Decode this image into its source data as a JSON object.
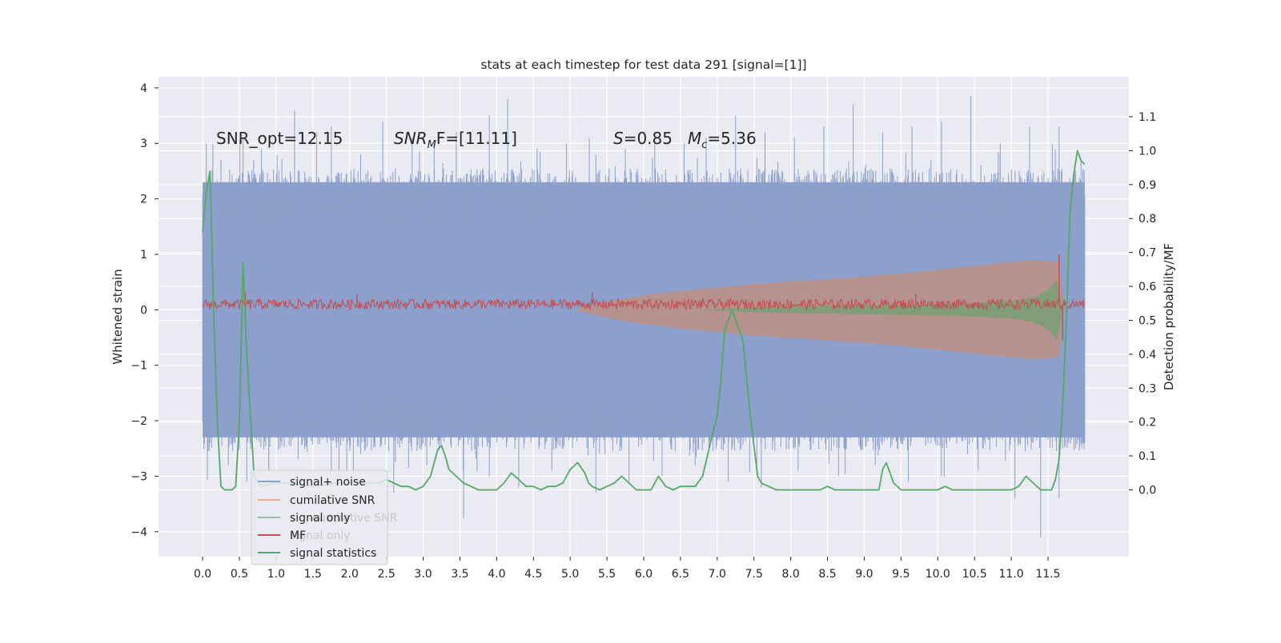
{
  "chart_data": {
    "type": "line",
    "title": "stats at each timestep for test data 291 [signal=[1]]",
    "xlabel": "",
    "ylabel": "Whitened strain",
    "y2label": "Detection probability/MF",
    "xlim": [
      -0.6,
      12.6
    ],
    "ylim": [
      -4.45,
      4.2
    ],
    "y2lim": [
      -0.197,
      1.218
    ],
    "xticks": [
      0.0,
      0.5,
      1.0,
      1.5,
      2.0,
      2.5,
      3.0,
      3.5,
      4.0,
      4.5,
      5.0,
      5.5,
      6.0,
      6.5,
      7.0,
      7.5,
      8.0,
      8.5,
      9.0,
      9.5,
      10.0,
      10.5,
      11.0,
      11.5
    ],
    "xtick_labels": [
      "0.0",
      "0.5",
      "1.0",
      "1.5",
      "2.0",
      "2.5",
      "3.0",
      "3.5",
      "4.0",
      "4.5",
      "5.0",
      "5.5",
      "6.0",
      "6.5",
      "7.0",
      "7.5",
      "8.0",
      "8.5",
      "9.0",
      "9.5",
      "10.0",
      "10.5",
      "11.0",
      "11.5"
    ],
    "yticks": [
      4,
      3,
      2,
      1,
      0,
      -1,
      -2,
      -3,
      -4
    ],
    "ytick_labels": [
      "4",
      "3",
      "2",
      "1",
      "0",
      "−1",
      "−2",
      "−3",
      "−4"
    ],
    "y2ticks": [
      1.1,
      1.0,
      0.9,
      0.8,
      0.7,
      0.6,
      0.5,
      0.4,
      0.3,
      0.2,
      0.1,
      0.0
    ],
    "y2tick_labels": [
      "1.1",
      "1.0",
      "0.9",
      "0.8",
      "0.7",
      "0.6",
      "0.5",
      "0.4",
      "0.3",
      "0.2",
      "0.1",
      "0.0"
    ],
    "grid": true,
    "legend_position": "lower-left",
    "annotations": {
      "snr_opt": "SNR_opt=12.15",
      "snr_mf_main": "SNR",
      "snr_mf_sub": "M",
      "snr_mf_rest": "F=[11.11]",
      "s_main": "S",
      "s_rest": "=0.85",
      "mc_main": "M",
      "mc_sub": "c",
      "mc_rest": "=5.36"
    },
    "legend": [
      {
        "label": "signal+ noise",
        "color": "#8da0cb"
      },
      {
        "label": "cumilative SNR",
        "color": "#dd8452"
      },
      {
        "label": "signal only",
        "color": "#55a868"
      },
      {
        "label": "MF",
        "color": "#c44e52"
      },
      {
        "label": "signal statistics",
        "color": "#55a868"
      }
    ],
    "legend_ghost": [
      "cumilative SNR",
      "signal only"
    ],
    "series": [
      {
        "name": "signal+ noise",
        "axis": "left",
        "style": "dense-noise",
        "color": "#8da0cb",
        "x_range": [
          0.0,
          12.0
        ],
        "band_lo": -2.3,
        "band_hi": 2.3,
        "peaks_up": [
          [
            0.05,
            3.0
          ],
          [
            0.25,
            2.7
          ],
          [
            0.55,
            3.1
          ],
          [
            0.8,
            2.9
          ],
          [
            1.25,
            3.6
          ],
          [
            1.55,
            3.2
          ],
          [
            1.75,
            3.3
          ],
          [
            2.15,
            2.8
          ],
          [
            2.45,
            3.4
          ],
          [
            2.85,
            3.1
          ],
          [
            3.15,
            3.0
          ],
          [
            3.45,
            3.2
          ],
          [
            3.9,
            3.5
          ],
          [
            4.15,
            3.8
          ],
          [
            4.55,
            2.9
          ],
          [
            4.95,
            3.0
          ],
          [
            5.35,
            2.8
          ],
          [
            5.75,
            2.9
          ],
          [
            6.15,
            3.2
          ],
          [
            6.55,
            3.0
          ],
          [
            6.85,
            3.1
          ],
          [
            7.25,
            3.5
          ],
          [
            7.65,
            3.2
          ],
          [
            8.05,
            3.1
          ],
          [
            8.45,
            3.3
          ],
          [
            8.85,
            3.7
          ],
          [
            9.25,
            3.2
          ],
          [
            9.65,
            3.3
          ],
          [
            10.05,
            3.4
          ],
          [
            10.45,
            3.85
          ],
          [
            10.85,
            3.0
          ],
          [
            11.25,
            3.3
          ],
          [
            11.65,
            3.3
          ],
          [
            11.95,
            2.7
          ]
        ],
        "peaks_down": [
          [
            0.1,
            -2.4
          ],
          [
            0.35,
            -2.8
          ],
          [
            0.6,
            -3.1
          ],
          [
            0.9,
            -2.9
          ],
          [
            1.3,
            -2.7
          ],
          [
            1.75,
            -3.0
          ],
          [
            2.15,
            -2.6
          ],
          [
            2.6,
            -3.3
          ],
          [
            3.05,
            -2.8
          ],
          [
            3.55,
            -3.75
          ],
          [
            3.9,
            -3.0
          ],
          [
            4.3,
            -3.2
          ],
          [
            4.75,
            -2.9
          ],
          [
            5.35,
            -3.3
          ],
          [
            5.8,
            -3.1
          ],
          [
            6.25,
            -3.0
          ],
          [
            6.7,
            -2.8
          ],
          [
            7.15,
            -3.1
          ],
          [
            7.6,
            -3.2
          ],
          [
            8.1,
            -2.9
          ],
          [
            8.65,
            -3.0
          ],
          [
            9.15,
            -2.8
          ],
          [
            9.6,
            -3.1
          ],
          [
            10.05,
            -3.0
          ],
          [
            10.55,
            -2.9
          ],
          [
            11.05,
            -3.4
          ],
          [
            11.4,
            -4.1
          ],
          [
            11.65,
            -3.4
          ],
          [
            11.95,
            -2.4
          ]
        ]
      },
      {
        "name": "cumilative SNR",
        "axis": "left",
        "style": "chirp-envelope",
        "color": "#dd8452",
        "x": [
          5.1,
          5.5,
          6.0,
          6.5,
          7.0,
          7.5,
          8.0,
          8.5,
          9.0,
          9.5,
          10.0,
          10.5,
          11.0,
          11.3,
          11.5,
          11.65,
          11.72
        ],
        "upper": [
          0.02,
          0.14,
          0.26,
          0.34,
          0.4,
          0.46,
          0.51,
          0.55,
          0.6,
          0.65,
          0.72,
          0.79,
          0.86,
          0.89,
          0.88,
          0.85,
          0.0
        ],
        "lower": [
          -0.02,
          -0.14,
          -0.26,
          -0.34,
          -0.4,
          -0.46,
          -0.51,
          -0.55,
          -0.6,
          -0.65,
          -0.72,
          -0.79,
          -0.86,
          -0.89,
          -0.88,
          -0.85,
          0.0
        ]
      },
      {
        "name": "signal only",
        "axis": "left",
        "style": "chirp-inner",
        "color": "#55a868",
        "x": [
          6.8,
          7.5,
          8.0,
          8.5,
          9.0,
          9.5,
          10.0,
          10.5,
          11.0,
          11.3,
          11.5,
          11.62,
          11.7
        ],
        "upper": [
          0.0,
          0.04,
          0.06,
          0.07,
          0.08,
          0.09,
          0.1,
          0.12,
          0.16,
          0.22,
          0.35,
          0.55,
          0.0
        ],
        "lower": [
          0.0,
          -0.04,
          -0.06,
          -0.07,
          -0.08,
          -0.09,
          -0.1,
          -0.12,
          -0.16,
          -0.22,
          -0.35,
          -0.55,
          0.0
        ]
      },
      {
        "name": "MF",
        "axis": "left",
        "style": "jagged-line",
        "color": "#c44e52",
        "x_range": [
          0.0,
          12.0
        ],
        "center": 0.1,
        "amplitude": 0.09,
        "spikes": [
          [
            0.58,
            0.3
          ],
          [
            2.1,
            0.27
          ],
          [
            5.3,
            0.32
          ],
          [
            9.7,
            0.28
          ],
          [
            11.65,
            1.0
          ],
          [
            11.7,
            -0.55
          ]
        ]
      },
      {
        "name": "signal statistics",
        "axis": "right",
        "style": "line",
        "color": "#55a868",
        "x": [
          0.0,
          0.05,
          0.1,
          0.15,
          0.2,
          0.25,
          0.3,
          0.35,
          0.4,
          0.45,
          0.5,
          0.55,
          0.6,
          0.7,
          0.8,
          1.0,
          1.2,
          1.5,
          1.8,
          2.0,
          2.2,
          2.4,
          2.5,
          2.6,
          2.7,
          2.8,
          2.9,
          3.0,
          3.1,
          3.2,
          3.25,
          3.3,
          3.35,
          3.45,
          3.55,
          3.65,
          3.75,
          3.85,
          4.0,
          4.1,
          4.2,
          4.3,
          4.4,
          4.5,
          4.6,
          4.7,
          4.8,
          4.9,
          5.0,
          5.1,
          5.2,
          5.25,
          5.3,
          5.4,
          5.5,
          5.6,
          5.7,
          5.8,
          5.9,
          6.0,
          6.1,
          6.2,
          6.3,
          6.4,
          6.5,
          6.6,
          6.7,
          6.8,
          6.9,
          7.0,
          7.05,
          7.1,
          7.2,
          7.3,
          7.35,
          7.45,
          7.55,
          7.6,
          7.7,
          7.8,
          7.9,
          8.0,
          8.2,
          8.4,
          8.5,
          8.6,
          8.8,
          9.0,
          9.1,
          9.2,
          9.25,
          9.3,
          9.35,
          9.4,
          9.5,
          9.6,
          9.8,
          10.0,
          10.1,
          10.2,
          10.4,
          10.6,
          10.8,
          11.0,
          11.1,
          11.2,
          11.3,
          11.4,
          11.5,
          11.55,
          11.6,
          11.65,
          11.7,
          11.75,
          11.8,
          11.85,
          11.9,
          11.95,
          12.0
        ],
        "y": [
          0.76,
          0.88,
          0.94,
          0.52,
          0.2,
          0.01,
          0.0,
          0.0,
          0.0,
          0.01,
          0.2,
          0.67,
          0.4,
          0.04,
          0.01,
          0.02,
          0.02,
          0.01,
          0.02,
          0.02,
          0.02,
          0.02,
          0.03,
          0.02,
          0.01,
          0.01,
          0.0,
          0.01,
          0.04,
          0.12,
          0.13,
          0.1,
          0.06,
          0.04,
          0.02,
          0.01,
          0.0,
          0.0,
          0.0,
          0.02,
          0.05,
          0.03,
          0.01,
          0.01,
          0.0,
          0.01,
          0.01,
          0.02,
          0.06,
          0.08,
          0.05,
          0.02,
          0.01,
          0.0,
          0.01,
          0.02,
          0.04,
          0.02,
          0.0,
          0.0,
          0.0,
          0.04,
          0.01,
          0.0,
          0.01,
          0.01,
          0.01,
          0.04,
          0.13,
          0.22,
          0.32,
          0.47,
          0.53,
          0.47,
          0.44,
          0.22,
          0.04,
          0.02,
          0.01,
          0.0,
          0.0,
          0.0,
          0.0,
          0.0,
          0.01,
          0.0,
          0.0,
          0.0,
          0.0,
          0.0,
          0.06,
          0.08,
          0.05,
          0.02,
          0.0,
          0.0,
          0.0,
          0.0,
          0.01,
          0.0,
          0.0,
          0.0,
          0.0,
          0.0,
          0.01,
          0.04,
          0.02,
          0.0,
          0.0,
          0.0,
          0.03,
          0.09,
          0.25,
          0.5,
          0.82,
          0.93,
          1.0,
          0.97,
          0.96
        ]
      }
    ]
  }
}
